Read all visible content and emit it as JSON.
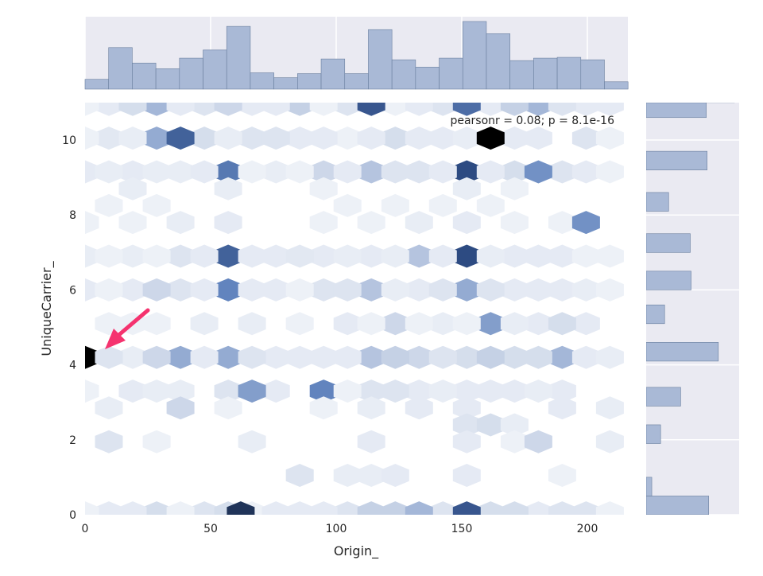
{
  "chart_data": {
    "type": "hexbin",
    "xlabel": "Origin_",
    "ylabel": "UniqueCarrier_",
    "xlim": [
      0,
      217
    ],
    "ylim": [
      0,
      11
    ],
    "x_ticks": [
      0,
      50,
      100,
      150,
      200
    ],
    "y_ticks": [
      0,
      2,
      4,
      6,
      8,
      10
    ],
    "annotation": "pearsonr = 0.08; p = 8.1e-16",
    "colors": {
      "background": "#eaeaf2",
      "grid": "#ffffff",
      "bar_fill": "#a9b9d6",
      "bar_edge": "#6a7f9e",
      "hex_light": "#f5f7fb",
      "hex_dark": "#1a2945",
      "arrow": "#f5336f"
    },
    "hexbins": [
      {
        "x": 9.5,
        "y": 10.95,
        "c": 0.1
      },
      {
        "x": 28.5,
        "y": 10.95,
        "c": 0.4
      },
      {
        "x": 47.5,
        "y": 10.95,
        "c": 0.15
      },
      {
        "x": 66.5,
        "y": 10.95,
        "c": 0.1
      },
      {
        "x": 85.5,
        "y": 10.95,
        "c": 0.3
      },
      {
        "x": 104.5,
        "y": 10.95,
        "c": 0.15
      },
      {
        "x": 123.5,
        "y": 10.95,
        "c": 0.05
      },
      {
        "x": 142.5,
        "y": 10.95,
        "c": 0.15
      },
      {
        "x": 161.5,
        "y": 10.95,
        "c": 0.1
      },
      {
        "x": 180.5,
        "y": 10.95,
        "c": 0.4
      },
      {
        "x": 199.5,
        "y": 10.95,
        "c": 0.1
      },
      {
        "x": 0,
        "y": 10.95,
        "c": 0.05
      },
      {
        "x": 19,
        "y": 10.95,
        "c": 0.2
      },
      {
        "x": 38,
        "y": 10.95,
        "c": 0.1
      },
      {
        "x": 57,
        "y": 10.95,
        "c": 0.25
      },
      {
        "x": 76,
        "y": 10.95,
        "c": 0.1
      },
      {
        "x": 95,
        "y": 10.95,
        "c": 0.05
      },
      {
        "x": 114,
        "y": 10.95,
        "c": 0.8
      },
      {
        "x": 133,
        "y": 10.95,
        "c": 0.1
      },
      {
        "x": 152,
        "y": 10.95,
        "c": 0.7
      },
      {
        "x": 171,
        "y": 10.95,
        "c": 0.3
      },
      {
        "x": 190,
        "y": 10.95,
        "c": 0.15
      },
      {
        "x": 209,
        "y": 10.95,
        "c": 0.1
      },
      {
        "x": 9.5,
        "y": 10.05,
        "c": 0.12
      },
      {
        "x": 28.5,
        "y": 10.05,
        "c": 0.45
      },
      {
        "x": 47.5,
        "y": 10.05,
        "c": 0.2
      },
      {
        "x": 66.5,
        "y": 10.05,
        "c": 0.15
      },
      {
        "x": 85.5,
        "y": 10.05,
        "c": 0.1
      },
      {
        "x": 104.5,
        "y": 10.05,
        "c": 0.05
      },
      {
        "x": 123.5,
        "y": 10.05,
        "c": 0.2
      },
      {
        "x": 142.5,
        "y": 10.05,
        "c": 0.1
      },
      {
        "x": 180.5,
        "y": 10.05,
        "c": 0.1
      },
      {
        "x": 199.5,
        "y": 10.05,
        "c": 0.15
      },
      {
        "x": 0,
        "y": 10.05,
        "c": 0.05
      },
      {
        "x": 19,
        "y": 10.05,
        "c": 0.08
      },
      {
        "x": 38,
        "y": 10.05,
        "c": 0.75
      },
      {
        "x": 57,
        "y": 10.05,
        "c": 0.08
      },
      {
        "x": 76,
        "y": 10.05,
        "c": 0.15
      },
      {
        "x": 95,
        "y": 10.05,
        "c": 0.1
      },
      {
        "x": 114,
        "y": 10.05,
        "c": 0.1
      },
      {
        "x": 133,
        "y": 10.05,
        "c": 0.1
      },
      {
        "x": 152,
        "y": 10.05,
        "c": 0.08
      },
      {
        "x": 171,
        "y": 10.05,
        "c": 0.1
      },
      {
        "x": 161.5,
        "y": 10.05,
        "c": 1.0
      },
      {
        "x": 209,
        "y": 10.05,
        "c": 0.05
      },
      {
        "x": 0,
        "y": 9.15,
        "c": 0.1
      },
      {
        "x": 19,
        "y": 9.15,
        "c": 0.1
      },
      {
        "x": 38,
        "y": 9.15,
        "c": 0.08
      },
      {
        "x": 57,
        "y": 9.15,
        "c": 0.65
      },
      {
        "x": 76,
        "y": 9.15,
        "c": 0.08
      },
      {
        "x": 95,
        "y": 9.15,
        "c": 0.25
      },
      {
        "x": 114,
        "y": 9.15,
        "c": 0.35
      },
      {
        "x": 133,
        "y": 9.15,
        "c": 0.15
      },
      {
        "x": 152,
        "y": 9.15,
        "c": 0.85
      },
      {
        "x": 171,
        "y": 9.15,
        "c": 0.2
      },
      {
        "x": 190,
        "y": 9.15,
        "c": 0.15
      },
      {
        "x": 9.5,
        "y": 9.15,
        "c": 0.08
      },
      {
        "x": 28.5,
        "y": 9.15,
        "c": 0.08
      },
      {
        "x": 47.5,
        "y": 9.15,
        "c": 0.1
      },
      {
        "x": 66.5,
        "y": 9.15,
        "c": 0.05
      },
      {
        "x": 85.5,
        "y": 9.15,
        "c": 0.05
      },
      {
        "x": 104.5,
        "y": 9.15,
        "c": 0.1
      },
      {
        "x": 123.5,
        "y": 9.15,
        "c": 0.15
      },
      {
        "x": 142.5,
        "y": 9.15,
        "c": 0.1
      },
      {
        "x": 161.5,
        "y": 9.15,
        "c": 0.1
      },
      {
        "x": 180.5,
        "y": 9.15,
        "c": 0.55
      },
      {
        "x": 199.5,
        "y": 9.15,
        "c": 0.1
      },
      {
        "x": 209,
        "y": 9.15,
        "c": 0.05
      },
      {
        "x": 19,
        "y": 8.7,
        "c": 0.08
      },
      {
        "x": 57,
        "y": 8.7,
        "c": 0.08
      },
      {
        "x": 95,
        "y": 8.7,
        "c": 0.05
      },
      {
        "x": 152,
        "y": 8.7,
        "c": 0.08
      },
      {
        "x": 171,
        "y": 8.7,
        "c": 0.05
      },
      {
        "x": 9.5,
        "y": 8.25,
        "c": 0.05
      },
      {
        "x": 28.5,
        "y": 8.25,
        "c": 0.05
      },
      {
        "x": 104.5,
        "y": 8.25,
        "c": 0.05
      },
      {
        "x": 123.5,
        "y": 8.25,
        "c": 0.05
      },
      {
        "x": 142.5,
        "y": 8.25,
        "c": 0.05
      },
      {
        "x": 161.5,
        "y": 8.25,
        "c": 0.05
      },
      {
        "x": 0,
        "y": 7.8,
        "c": 0.05
      },
      {
        "x": 19,
        "y": 7.8,
        "c": 0.05
      },
      {
        "x": 38,
        "y": 7.8,
        "c": 0.08
      },
      {
        "x": 57,
        "y": 7.8,
        "c": 0.1
      },
      {
        "x": 95,
        "y": 7.8,
        "c": 0.05
      },
      {
        "x": 114,
        "y": 7.8,
        "c": 0.05
      },
      {
        "x": 133,
        "y": 7.8,
        "c": 0.08
      },
      {
        "x": 152,
        "y": 7.8,
        "c": 0.1
      },
      {
        "x": 171,
        "y": 7.8,
        "c": 0.05
      },
      {
        "x": 190,
        "y": 7.8,
        "c": 0.05
      },
      {
        "x": 199.5,
        "y": 7.8,
        "c": 0.55
      },
      {
        "x": 0,
        "y": 6.9,
        "c": 0.08
      },
      {
        "x": 19,
        "y": 6.9,
        "c": 0.08
      },
      {
        "x": 38,
        "y": 6.9,
        "c": 0.15
      },
      {
        "x": 57,
        "y": 6.9,
        "c": 0.75
      },
      {
        "x": 76,
        "y": 6.9,
        "c": 0.1
      },
      {
        "x": 95,
        "y": 6.9,
        "c": 0.1
      },
      {
        "x": 114,
        "y": 6.9,
        "c": 0.1
      },
      {
        "x": 133,
        "y": 6.9,
        "c": 0.35
      },
      {
        "x": 152,
        "y": 6.9,
        "c": 0.85
      },
      {
        "x": 171,
        "y": 6.9,
        "c": 0.1
      },
      {
        "x": 190,
        "y": 6.9,
        "c": 0.1
      },
      {
        "x": 9.5,
        "y": 6.9,
        "c": 0.05
      },
      {
        "x": 28.5,
        "y": 6.9,
        "c": 0.05
      },
      {
        "x": 47.5,
        "y": 6.9,
        "c": 0.1
      },
      {
        "x": 66.5,
        "y": 6.9,
        "c": 0.1
      },
      {
        "x": 85.5,
        "y": 6.9,
        "c": 0.12
      },
      {
        "x": 104.5,
        "y": 6.9,
        "c": 0.08
      },
      {
        "x": 123.5,
        "y": 6.9,
        "c": 0.08
      },
      {
        "x": 142.5,
        "y": 6.9,
        "c": 0.1
      },
      {
        "x": 161.5,
        "y": 6.9,
        "c": 0.08
      },
      {
        "x": 180.5,
        "y": 6.9,
        "c": 0.1
      },
      {
        "x": 199.5,
        "y": 6.9,
        "c": 0.05
      },
      {
        "x": 209,
        "y": 6.9,
        "c": 0.05
      },
      {
        "x": 0,
        "y": 6.0,
        "c": 0.1
      },
      {
        "x": 19,
        "y": 6.0,
        "c": 0.1
      },
      {
        "x": 38,
        "y": 6.0,
        "c": 0.15
      },
      {
        "x": 57,
        "y": 6.0,
        "c": 0.6
      },
      {
        "x": 76,
        "y": 6.0,
        "c": 0.1
      },
      {
        "x": 95,
        "y": 6.0,
        "c": 0.15
      },
      {
        "x": 114,
        "y": 6.0,
        "c": 0.35
      },
      {
        "x": 133,
        "y": 6.0,
        "c": 0.1
      },
      {
        "x": 152,
        "y": 6.0,
        "c": 0.45
      },
      {
        "x": 171,
        "y": 6.0,
        "c": 0.1
      },
      {
        "x": 190,
        "y": 6.0,
        "c": 0.1
      },
      {
        "x": 9.5,
        "y": 6.0,
        "c": 0.05
      },
      {
        "x": 28.5,
        "y": 6.0,
        "c": 0.25
      },
      {
        "x": 47.5,
        "y": 6.0,
        "c": 0.1
      },
      {
        "x": 66.5,
        "y": 6.0,
        "c": 0.1
      },
      {
        "x": 85.5,
        "y": 6.0,
        "c": 0.05
      },
      {
        "x": 104.5,
        "y": 6.0,
        "c": 0.15
      },
      {
        "x": 123.5,
        "y": 6.0,
        "c": 0.08
      },
      {
        "x": 142.5,
        "y": 6.0,
        "c": 0.15
      },
      {
        "x": 161.5,
        "y": 6.0,
        "c": 0.15
      },
      {
        "x": 180.5,
        "y": 6.0,
        "c": 0.1
      },
      {
        "x": 199.5,
        "y": 6.0,
        "c": 0.08
      },
      {
        "x": 209,
        "y": 6.0,
        "c": 0.05
      },
      {
        "x": 9.5,
        "y": 5.1,
        "c": 0.05
      },
      {
        "x": 28.5,
        "y": 5.1,
        "c": 0.05
      },
      {
        "x": 47.5,
        "y": 5.1,
        "c": 0.08
      },
      {
        "x": 66.5,
        "y": 5.1,
        "c": 0.08
      },
      {
        "x": 85.5,
        "y": 5.1,
        "c": 0.05
      },
      {
        "x": 104.5,
        "y": 5.1,
        "c": 0.1
      },
      {
        "x": 123.5,
        "y": 5.1,
        "c": 0.25
      },
      {
        "x": 142.5,
        "y": 5.1,
        "c": 0.08
      },
      {
        "x": 161.5,
        "y": 5.1,
        "c": 0.5
      },
      {
        "x": 180.5,
        "y": 5.1,
        "c": 0.1
      },
      {
        "x": 199.5,
        "y": 5.1,
        "c": 0.1
      },
      {
        "x": 19,
        "y": 5.1,
        "c": 0.05
      },
      {
        "x": 114,
        "y": 5.1,
        "c": 0.05
      },
      {
        "x": 133,
        "y": 5.1,
        "c": 0.05
      },
      {
        "x": 152,
        "y": 5.1,
        "c": 0.05
      },
      {
        "x": 171,
        "y": 5.1,
        "c": 0.08
      },
      {
        "x": 190,
        "y": 5.1,
        "c": 0.2
      },
      {
        "x": 0,
        "y": 4.2,
        "c": 1.0
      },
      {
        "x": 19,
        "y": 4.2,
        "c": 0.08
      },
      {
        "x": 38,
        "y": 4.2,
        "c": 0.45
      },
      {
        "x": 57,
        "y": 4.2,
        "c": 0.45
      },
      {
        "x": 76,
        "y": 4.2,
        "c": 0.1
      },
      {
        "x": 95,
        "y": 4.2,
        "c": 0.1
      },
      {
        "x": 114,
        "y": 4.2,
        "c": 0.35
      },
      {
        "x": 133,
        "y": 4.2,
        "c": 0.25
      },
      {
        "x": 152,
        "y": 4.2,
        "c": 0.2
      },
      {
        "x": 171,
        "y": 4.2,
        "c": 0.2
      },
      {
        "x": 190,
        "y": 4.2,
        "c": 0.4
      },
      {
        "x": 9.5,
        "y": 4.2,
        "c": 0.15
      },
      {
        "x": 28.5,
        "y": 4.2,
        "c": 0.25
      },
      {
        "x": 47.5,
        "y": 4.2,
        "c": 0.1
      },
      {
        "x": 66.5,
        "y": 4.2,
        "c": 0.15
      },
      {
        "x": 85.5,
        "y": 4.2,
        "c": 0.1
      },
      {
        "x": 104.5,
        "y": 4.2,
        "c": 0.1
      },
      {
        "x": 123.5,
        "y": 4.2,
        "c": 0.3
      },
      {
        "x": 142.5,
        "y": 4.2,
        "c": 0.15
      },
      {
        "x": 161.5,
        "y": 4.2,
        "c": 0.3
      },
      {
        "x": 180.5,
        "y": 4.2,
        "c": 0.2
      },
      {
        "x": 199.5,
        "y": 4.2,
        "c": 0.1
      },
      {
        "x": 209,
        "y": 4.2,
        "c": 0.08
      },
      {
        "x": 0,
        "y": 3.3,
        "c": 0.05
      },
      {
        "x": 19,
        "y": 3.3,
        "c": 0.1
      },
      {
        "x": 38,
        "y": 3.3,
        "c": 0.08
      },
      {
        "x": 57,
        "y": 3.3,
        "c": 0.15
      },
      {
        "x": 76,
        "y": 3.3,
        "c": 0.1
      },
      {
        "x": 95,
        "y": 3.3,
        "c": 0.6
      },
      {
        "x": 114,
        "y": 3.3,
        "c": 0.15
      },
      {
        "x": 133,
        "y": 3.3,
        "c": 0.1
      },
      {
        "x": 152,
        "y": 3.3,
        "c": 0.1
      },
      {
        "x": 171,
        "y": 3.3,
        "c": 0.1
      },
      {
        "x": 190,
        "y": 3.3,
        "c": 0.1
      },
      {
        "x": 28.5,
        "y": 3.3,
        "c": 0.08
      },
      {
        "x": 66.5,
        "y": 3.3,
        "c": 0.5
      },
      {
        "x": 104.5,
        "y": 3.3,
        "c": 0.05
      },
      {
        "x": 123.5,
        "y": 3.3,
        "c": 0.15
      },
      {
        "x": 142.5,
        "y": 3.3,
        "c": 0.08
      },
      {
        "x": 161.5,
        "y": 3.3,
        "c": 0.1
      },
      {
        "x": 180.5,
        "y": 3.3,
        "c": 0.08
      },
      {
        "x": 9.5,
        "y": 2.85,
        "c": 0.08
      },
      {
        "x": 38,
        "y": 2.85,
        "c": 0.25
      },
      {
        "x": 57,
        "y": 2.85,
        "c": 0.05
      },
      {
        "x": 95,
        "y": 2.85,
        "c": 0.05
      },
      {
        "x": 114,
        "y": 2.85,
        "c": 0.08
      },
      {
        "x": 133,
        "y": 2.85,
        "c": 0.1
      },
      {
        "x": 152,
        "y": 2.85,
        "c": 0.1
      },
      {
        "x": 190,
        "y": 2.85,
        "c": 0.1
      },
      {
        "x": 209,
        "y": 2.85,
        "c": 0.08
      },
      {
        "x": 152,
        "y": 2.4,
        "c": 0.15
      },
      {
        "x": 161.5,
        "y": 2.4,
        "c": 0.2
      },
      {
        "x": 171,
        "y": 2.4,
        "c": 0.08
      },
      {
        "x": 9.5,
        "y": 1.95,
        "c": 0.15
      },
      {
        "x": 28.5,
        "y": 1.95,
        "c": 0.05
      },
      {
        "x": 66.5,
        "y": 1.95,
        "c": 0.08
      },
      {
        "x": 114,
        "y": 1.95,
        "c": 0.1
      },
      {
        "x": 152,
        "y": 1.95,
        "c": 0.1
      },
      {
        "x": 171,
        "y": 1.95,
        "c": 0.05
      },
      {
        "x": 180.5,
        "y": 1.95,
        "c": 0.25
      },
      {
        "x": 209,
        "y": 1.95,
        "c": 0.08
      },
      {
        "x": 85.5,
        "y": 1.05,
        "c": 0.15
      },
      {
        "x": 104.5,
        "y": 1.05,
        "c": 0.08
      },
      {
        "x": 114,
        "y": 1.05,
        "c": 0.08
      },
      {
        "x": 123.5,
        "y": 1.05,
        "c": 0.1
      },
      {
        "x": 152,
        "y": 1.05,
        "c": 0.1
      },
      {
        "x": 190,
        "y": 1.05,
        "c": 0.05
      },
      {
        "x": 9.5,
        "y": 0.05,
        "c": 0.1
      },
      {
        "x": 28.5,
        "y": 0.05,
        "c": 0.2
      },
      {
        "x": 47.5,
        "y": 0.05,
        "c": 0.15
      },
      {
        "x": 66.5,
        "y": 0.05,
        "c": 0.05
      },
      {
        "x": 85.5,
        "y": 0.05,
        "c": 0.1
      },
      {
        "x": 104.5,
        "y": 0.05,
        "c": 0.15
      },
      {
        "x": 123.5,
        "y": 0.05,
        "c": 0.3
      },
      {
        "x": 142.5,
        "y": 0.05,
        "c": 0.15
      },
      {
        "x": 161.5,
        "y": 0.05,
        "c": 0.2
      },
      {
        "x": 180.5,
        "y": 0.05,
        "c": 0.1
      },
      {
        "x": 199.5,
        "y": 0.05,
        "c": 0.15
      },
      {
        "x": 0,
        "y": 0.05,
        "c": 0.05
      },
      {
        "x": 19,
        "y": 0.05,
        "c": 0.1
      },
      {
        "x": 38,
        "y": 0.05,
        "c": 0.05
      },
      {
        "x": 57,
        "y": 0.05,
        "c": 0.2
      },
      {
        "x": 62,
        "y": 0.05,
        "c": 0.95
      },
      {
        "x": 76,
        "y": 0.05,
        "c": 0.1
      },
      {
        "x": 95,
        "y": 0.05,
        "c": 0.1
      },
      {
        "x": 114,
        "y": 0.05,
        "c": 0.3
      },
      {
        "x": 133,
        "y": 0.05,
        "c": 0.4
      },
      {
        "x": 152,
        "y": 0.05,
        "c": 0.8
      },
      {
        "x": 171,
        "y": 0.05,
        "c": 0.2
      },
      {
        "x": 190,
        "y": 0.05,
        "c": 0.15
      },
      {
        "x": 209,
        "y": 0.05,
        "c": 0.05
      }
    ],
    "marginal_x": {
      "bin_edges": [
        0,
        9.4,
        18.8,
        28.2,
        37.6,
        47,
        56.4,
        65.8,
        75.2,
        84.6,
        94,
        103.4,
        112.8,
        122.2,
        131.6,
        141,
        150.4,
        159.8,
        169.2,
        178.6,
        188,
        197.4,
        206.8,
        216.2
      ],
      "counts": [
        12,
        51,
        32,
        25,
        38,
        48,
        77,
        20,
        14,
        19,
        37,
        19,
        73,
        36,
        27,
        38,
        83,
        68,
        35,
        38,
        39,
        36,
        9
      ]
    },
    "marginal_y": {
      "bins": [
        {
          "y0": 0.0,
          "y1": 0.5,
          "count": 78
        },
        {
          "y0": 0.5,
          "y1": 1.0,
          "count": 7
        },
        {
          "y0": 1.9,
          "y1": 2.4,
          "count": 18
        },
        {
          "y0": 2.9,
          "y1": 3.4,
          "count": 43
        },
        {
          "y0": 4.1,
          "y1": 4.6,
          "count": 90
        },
        {
          "y0": 5.1,
          "y1": 5.6,
          "count": 23
        },
        {
          "y0": 6.0,
          "y1": 6.5,
          "count": 56
        },
        {
          "y0": 7.0,
          "y1": 7.5,
          "count": 55
        },
        {
          "y0": 8.1,
          "y1": 8.6,
          "count": 28
        },
        {
          "y0": 9.2,
          "y1": 9.7,
          "count": 76
        },
        {
          "y0": 10.6,
          "y1": 11.0,
          "count": 75
        },
        {
          "y0": 11.0,
          "y1": 11.5,
          "count": 110
        }
      ]
    }
  }
}
